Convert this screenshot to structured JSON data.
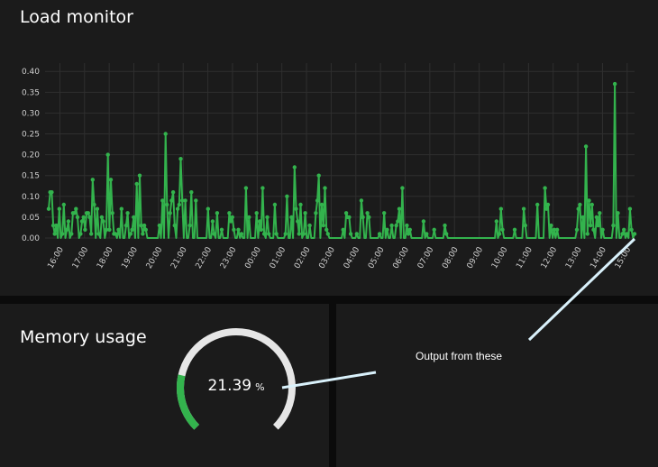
{
  "load_monitor": {
    "title": "Load monitor"
  },
  "memory_usage": {
    "title": "Memory usage",
    "value": "21.39",
    "unit": "%",
    "fraction": 0.2139
  },
  "annotation": {
    "text": "Output from these"
  },
  "colors": {
    "series": "#33b34d",
    "panel": "#1b1b1b",
    "gauge_track": "#e6e6e6",
    "annotation_line": "#d9f1fb"
  },
  "chart_data": {
    "type": "line",
    "x_labels": [
      "16:00",
      "17:00",
      "18:00",
      "19:00",
      "20:00",
      "21:00",
      "22:00",
      "23:00",
      "00:00",
      "01:00",
      "02:00",
      "03:00",
      "04:00",
      "05:00",
      "06:00",
      "07:00",
      "08:00",
      "09:00",
      "10:00",
      "11:00",
      "12:00",
      "13:00",
      "14:00",
      "15:00"
    ],
    "x_start_hours": -0.6,
    "x_end_hours": 23.3,
    "y_ticks": [
      "0.00",
      "0.05",
      "0.10",
      "0.15",
      "0.20",
      "0.25",
      "0.30",
      "0.35",
      "0.40"
    ],
    "ylim": [
      0,
      0.42
    ],
    "grid": true,
    "values": [
      0.07,
      0.11,
      0.11,
      0.03,
      0.01,
      0.03,
      0.0,
      0.07,
      0.0,
      0.01,
      0.08,
      0.0,
      0.02,
      0.04,
      0.0,
      0.01,
      0.06,
      0.06,
      0.07,
      0.05,
      0.0,
      0.01,
      0.04,
      0.05,
      0.02,
      0.06,
      0.06,
      0.05,
      0.01,
      0.14,
      0.08,
      0.0,
      0.07,
      0.01,
      0.0,
      0.05,
      0.04,
      0.0,
      0.02,
      0.2,
      0.02,
      0.14,
      0.06,
      0.01,
      0.01,
      0.0,
      0.02,
      0.0,
      0.07,
      0.0,
      0.0,
      0.03,
      0.06,
      0.0,
      0.01,
      0.02,
      0.05,
      0.0,
      0.13,
      0.0,
      0.15,
      0.03,
      0.01,
      0.03,
      0.02,
      0.0,
      0.0,
      0.0,
      0.0,
      0.0,
      0.0,
      0.0,
      0.0,
      0.03,
      0.0,
      0.09,
      0.0,
      0.25,
      0.08,
      0.0,
      0.06,
      0.09,
      0.11,
      0.03,
      0.0,
      0.07,
      0.08,
      0.19,
      0.09,
      0.0,
      0.09,
      0.0,
      0.0,
      0.03,
      0.11,
      0.0,
      0.0,
      0.09,
      0.0,
      0.0,
      0.0,
      0.0,
      0.0,
      0.0,
      0.0,
      0.07,
      0.0,
      0.0,
      0.04,
      0.01,
      0.0,
      0.06,
      0.0,
      0.0,
      0.02,
      0.0,
      0.0,
      0.0,
      0.0,
      0.06,
      0.04,
      0.05,
      0.02,
      0.0,
      0.0,
      0.02,
      0.0,
      0.01,
      0.0,
      0.0,
      0.12,
      0.0,
      0.05,
      0.0,
      0.0,
      0.0,
      0.0,
      0.06,
      0.0,
      0.04,
      0.02,
      0.12,
      0.01,
      0.0,
      0.05,
      0.01,
      0.0,
      0.0,
      0.0,
      0.08,
      0.01,
      0.0,
      0.0,
      0.0,
      0.0,
      0.0,
      0.01,
      0.1,
      0.0,
      0.0,
      0.05,
      0.0,
      0.17,
      0.07,
      0.04,
      0.01,
      0.08,
      0.0,
      0.01,
      0.06,
      0.0,
      0.0,
      0.03,
      0.0,
      0.0,
      0.0,
      0.06,
      0.09,
      0.15,
      0.0,
      0.08,
      0.03,
      0.12,
      0.02,
      0.01,
      0.0,
      0.0,
      0.0,
      0.0,
      0.0,
      0.0,
      0.0,
      0.0,
      0.0,
      0.02,
      0.0,
      0.06,
      0.05,
      0.05,
      0.01,
      0.0,
      0.0,
      0.0,
      0.01,
      0.0,
      0.0,
      0.09,
      0.05,
      0.0,
      0.0,
      0.06,
      0.05,
      0.0,
      0.0,
      0.0,
      0.0,
      0.0,
      0.0,
      0.01,
      0.0,
      0.0,
      0.06,
      0.0,
      0.02,
      0.0,
      0.0,
      0.03,
      0.0,
      0.0,
      0.03,
      0.04,
      0.07,
      0.0,
      0.12,
      0.0,
      0.0,
      0.03,
      0.01,
      0.02,
      0.0,
      0.0,
      0.0,
      0.0,
      0.0,
      0.0,
      0.0,
      0.0,
      0.04,
      0.0,
      0.01,
      0.0,
      0.0,
      0.0,
      0.0,
      0.02,
      0.0,
      0.0,
      0.0,
      0.0,
      0.0,
      0.0,
      0.03,
      0.01,
      0.0,
      0.0,
      0.0,
      0.0,
      0.0,
      0.0,
      0.0,
      0.0,
      0.0,
      0.0,
      0.0,
      0.0,
      0.0,
      0.0,
      0.0,
      0.0,
      0.0,
      0.0,
      0.0,
      0.0,
      0.0,
      0.0,
      0.0,
      0.0,
      0.0,
      0.0,
      0.0,
      0.0,
      0.0,
      0.0,
      0.0,
      0.0,
      0.04,
      0.0,
      0.01,
      0.07,
      0.02,
      0.0,
      0.0,
      0.0,
      0.0,
      0.0,
      0.0,
      0.0,
      0.02,
      0.0,
      0.0,
      0.0,
      0.0,
      0.0,
      0.07,
      0.03,
      0.0,
      0.0,
      0.0,
      0.0,
      0.0,
      0.0,
      0.0,
      0.08,
      0.0,
      0.0,
      0.0,
      0.0,
      0.12,
      0.07,
      0.08,
      0.0,
      0.03,
      0.0,
      0.02,
      0.0,
      0.02,
      0.0,
      0.0,
      0.0,
      0.0,
      0.0,
      0.0,
      0.0,
      0.0,
      0.0,
      0.0,
      0.0,
      0.0,
      0.02,
      0.07,
      0.08,
      0.0,
      0.05,
      0.0,
      0.22,
      0.01,
      0.09,
      0.03,
      0.08,
      0.02,
      0.0,
      0.05,
      0.03,
      0.06,
      0.0,
      0.02,
      0.0,
      0.0,
      0.0,
      0.0,
      0.0,
      0.0,
      0.03,
      0.37,
      0.0,
      0.06,
      0.0,
      0.0,
      0.01,
      0.02,
      0.0,
      0.01,
      0.0,
      0.07,
      0.02,
      0.0,
      0.01
    ]
  }
}
